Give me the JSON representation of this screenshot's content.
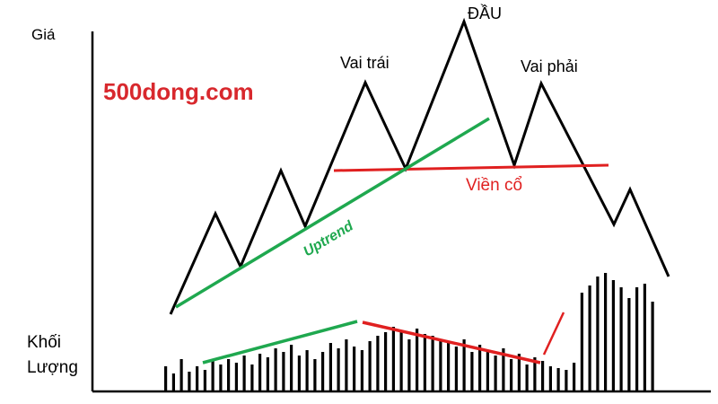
{
  "labels": {
    "price_axis": "Giá",
    "volume_axis_line1": "Khối",
    "volume_axis_line2": "Lượng",
    "watermark": "500dong.com",
    "left_shoulder": "Vai trái",
    "head": "ĐẦU",
    "right_shoulder": "Vai phải",
    "neckline": "Viền cổ",
    "uptrend": "Uptrend"
  },
  "colors": {
    "axis": "#000000",
    "price_line": "#000000",
    "uptrend": "#1fa84f",
    "neckline": "#e02020",
    "watermark": "#d8282d",
    "volume_bar": "#000000",
    "volume_up_trend": "#1fa84f",
    "volume_down_trend": "#e02020"
  },
  "volume_bars": [
    28,
    20,
    36,
    22,
    28,
    24,
    34,
    30,
    36,
    32,
    40,
    30,
    42,
    38,
    48,
    44,
    52,
    40,
    46,
    36,
    44,
    54,
    48,
    58,
    50,
    46,
    56,
    62,
    66,
    72,
    68,
    58,
    70,
    64,
    62,
    56,
    54,
    50,
    58,
    44,
    52,
    46,
    40,
    48,
    36,
    42,
    30,
    38,
    34,
    28,
    26,
    24,
    32,
    110,
    118,
    128,
    132,
    124,
    116,
    104,
    116,
    120,
    100
  ]
}
